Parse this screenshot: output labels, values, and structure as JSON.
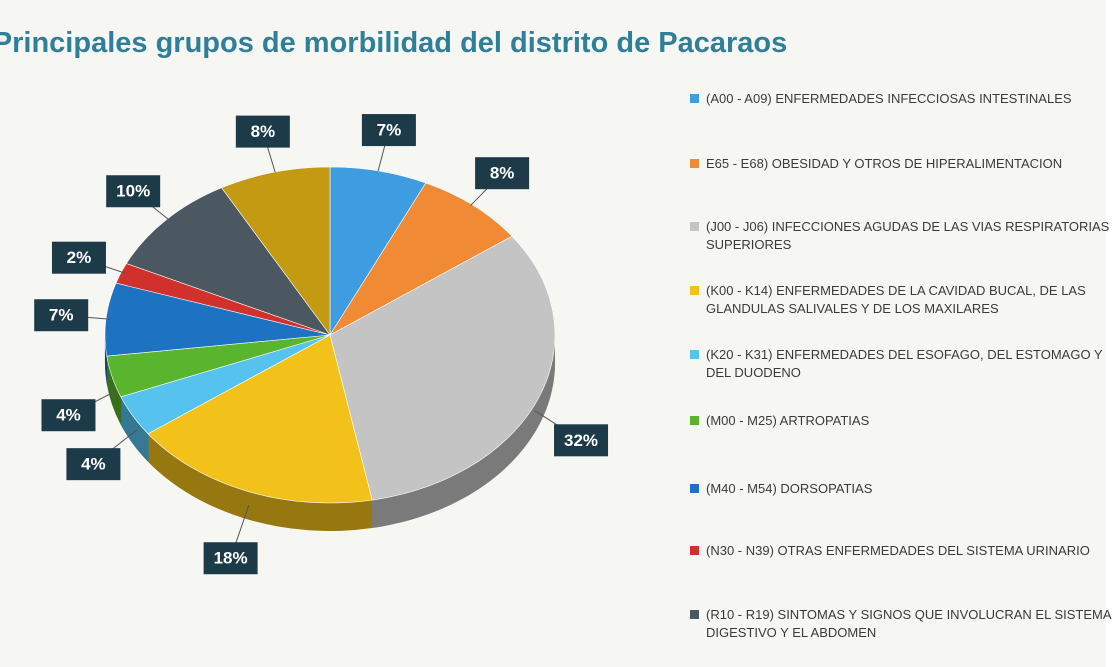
{
  "chart_data": {
    "type": "pie",
    "title": "Principales grupos de morbilidad del distrito de Pacaraos",
    "categories": [
      "(A00 - A09) ENFERMEDADES INFECCIOSAS INTESTINALES",
      "E65 - E68) OBESIDAD Y OTROS DE HIPERALIMENTACION",
      "(J00 - J06) INFECCIONES AGUDAS DE LAS VIAS RESPIRATORIAS SUPERIORES",
      "(K00 - K14) ENFERMEDADES DE LA CAVIDAD BUCAL, DE LAS GLANDULAS SALIVALES Y DE LOS MAXILARES",
      "(K20 - K31) ENFERMEDADES DEL ESOFAGO, DEL ESTOMAGO Y DEL DUODENO",
      "(M00 - M25) ARTROPATIAS",
      "(M40 - M54) DORSOPATIAS",
      "(N30 - N39) OTRAS ENFERMEDADES DEL SISTEMA URINARIO",
      "(R10 - R19) SINTOMAS Y SIGNOS QUE INVOLUCRAN EL SISTEMA DIGESTIVO Y EL ABDOMEN",
      null
    ],
    "values": [
      7,
      8,
      32,
      18,
      4,
      4,
      7,
      2,
      10,
      8
    ],
    "value_labels": [
      "7%",
      "8%",
      "32%",
      "18%",
      "4%",
      "4%",
      "7%",
      "2%",
      "10%",
      "8%"
    ],
    "colors": [
      "#3d9de0",
      "#f08a35",
      "#c4c4c4",
      "#f3c21a",
      "#56c3ee",
      "#5ab52e",
      "#1d72c2",
      "#d0312d",
      "#4b5862",
      "#c49a12"
    ]
  }
}
